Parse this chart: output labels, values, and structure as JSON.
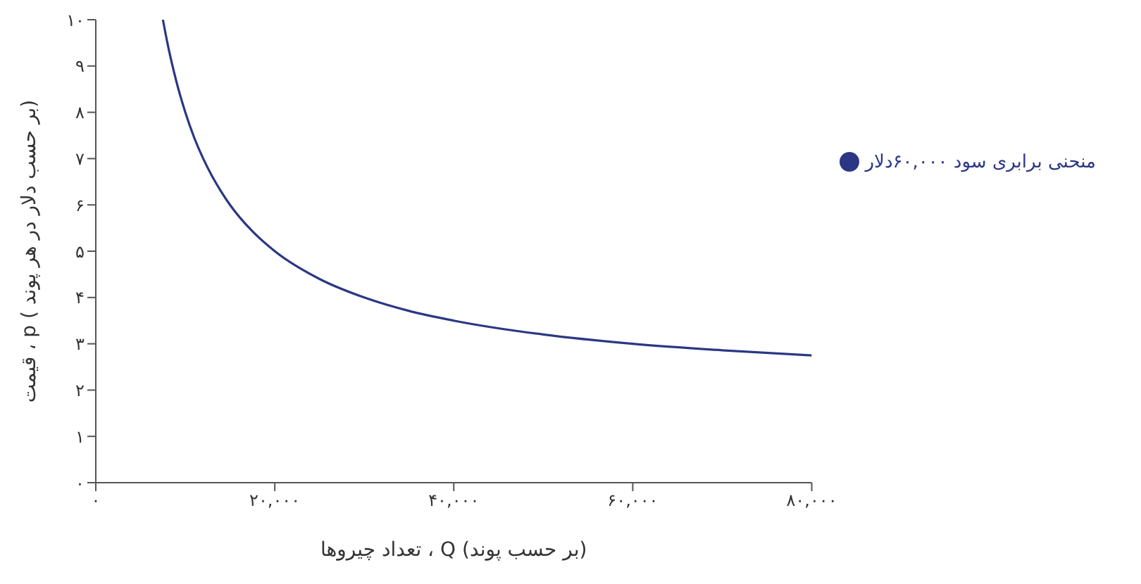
{
  "chart_data": {
    "type": "line",
    "xlabel": "تعداد چیروها ، Q (بر حسب پوند)",
    "ylabel": "قیمت ، p ( بر حسب دلار در هر پوند)",
    "x": [
      7500,
      8000,
      9000,
      10000,
      11000,
      12000,
      13000,
      14000,
      15000,
      17500,
      20000,
      25000,
      30000,
      35000,
      40000,
      50000,
      60000,
      70000,
      80000
    ],
    "series": [
      {
        "name": "منحنی برابری سود ۶۰,۰۰۰دلار",
        "color": "#2b3784",
        "values": [
          10,
          9.5,
          8.67,
          8,
          7.45,
          7,
          6.62,
          6.29,
          6,
          5.43,
          5,
          4.4,
          4,
          3.71,
          3.5,
          3.2,
          3,
          2.86,
          2.75
        ]
      }
    ],
    "xlim": [
      0,
      80000
    ],
    "xticks": [
      {
        "value": 0,
        "label": "۰"
      },
      {
        "value": 20000,
        "label": "۲۰,۰۰۰"
      },
      {
        "value": 40000,
        "label": "۴۰,۰۰۰"
      },
      {
        "value": 60000,
        "label": "۶۰,۰۰۰"
      },
      {
        "value": 80000,
        "label": "۸۰,۰۰۰"
      }
    ],
    "ylim": [
      0,
      10
    ],
    "yticks": [
      {
        "value": 0,
        "label": "۰"
      },
      {
        "value": 1,
        "label": "۱"
      },
      {
        "value": 2,
        "label": "۲"
      },
      {
        "value": 3,
        "label": "۳"
      },
      {
        "value": 4,
        "label": "۴"
      },
      {
        "value": 5,
        "label": "۵"
      },
      {
        "value": 6,
        "label": "۶"
      },
      {
        "value": 7,
        "label": "۷"
      },
      {
        "value": 8,
        "label": "۸"
      },
      {
        "value": 9,
        "label": "۹"
      },
      {
        "value": 10,
        "label": "۱۰"
      }
    ],
    "grid": false,
    "legend": "right",
    "marker": "none",
    "line_style": "solid"
  }
}
